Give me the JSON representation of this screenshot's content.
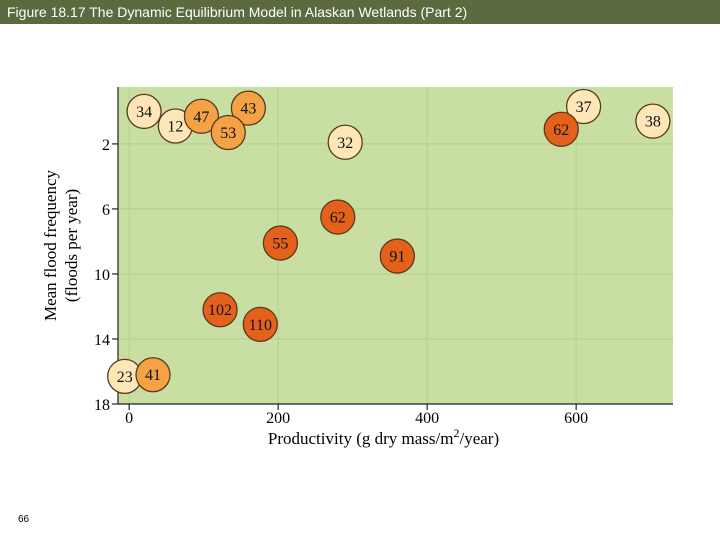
{
  "slide": {
    "title": "Figure 18.17  The Dynamic Equilibrium Model in Alaskan Wetlands (Part 2)",
    "page_number": "66"
  },
  "colors": {
    "title_bar": "#5b6b3f",
    "plot_bg": "#c8dea3",
    "grid": "#b6cf8e",
    "light": "#fde7b8",
    "medium": "#f3a245",
    "dark": "#e4611c",
    "bubble_stroke": "#5a3a1a"
  },
  "chart_data": {
    "type": "scatter",
    "title": "",
    "xlabel": "Productivity (g dry mass/m²/year)",
    "ylabel_line1": "Mean flood frequency",
    "ylabel_line2": "(floods per year)",
    "xlim": [
      -15,
      730
    ],
    "ylim": [
      18,
      -1.5
    ],
    "y_inverted": true,
    "xticks": [
      0,
      200,
      400,
      600
    ],
    "xtick_labels": [
      "0",
      "200",
      "400",
      "600"
    ],
    "yticks": [
      2,
      6,
      10,
      14,
      18
    ],
    "ytick_labels": [
      "2",
      "6",
      "10",
      "14",
      "18"
    ],
    "point_label_meaning": "number shown in each circle",
    "points": [
      {
        "label": "34",
        "x": 20,
        "y": 0.0,
        "shade": "light"
      },
      {
        "label": "12",
        "x": 62,
        "y": 0.9,
        "shade": "light"
      },
      {
        "label": "47",
        "x": 97,
        "y": 0.3,
        "shade": "medium"
      },
      {
        "label": "43",
        "x": 160,
        "y": -0.2,
        "shade": "medium"
      },
      {
        "label": "53",
        "x": 133,
        "y": 1.3,
        "shade": "medium"
      },
      {
        "label": "32",
        "x": 290,
        "y": 1.9,
        "shade": "light"
      },
      {
        "label": "37",
        "x": 610,
        "y": -0.3,
        "shade": "light"
      },
      {
        "label": "62",
        "x": 580,
        "y": 1.1,
        "shade": "dark"
      },
      {
        "label": "38",
        "x": 703,
        "y": 0.6,
        "shade": "light"
      },
      {
        "label": "62",
        "x": 280,
        "y": 6.5,
        "shade": "dark"
      },
      {
        "label": "55",
        "x": 203,
        "y": 8.1,
        "shade": "dark"
      },
      {
        "label": "91",
        "x": 360,
        "y": 8.9,
        "shade": "dark"
      },
      {
        "label": "102",
        "x": 122,
        "y": 12.2,
        "shade": "dark"
      },
      {
        "label": "110",
        "x": 176,
        "y": 13.1,
        "shade": "dark"
      },
      {
        "label": "23",
        "x": -6,
        "y": 16.3,
        "shade": "light"
      },
      {
        "label": "41",
        "x": 32,
        "y": 16.2,
        "shade": "medium"
      }
    ]
  }
}
